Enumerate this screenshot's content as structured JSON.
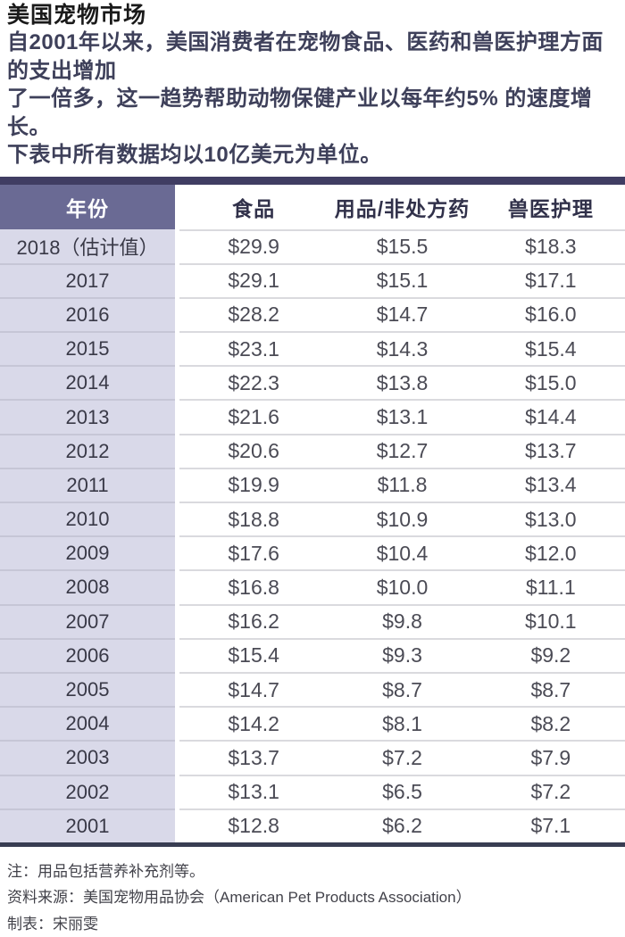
{
  "page": {
    "title": "美国宠物市场",
    "intro_lines": [
      "自2001年以来，美国消费者在宠物食品、医药和兽医护理方面的支出增加",
      "了一倍多，这一趋势帮助动物保健产业以每年约5% 的速度增长。",
      "下表中所有数据均以10亿美元为单位。"
    ]
  },
  "table": {
    "header": {
      "year": "年份",
      "columns": [
        "食品",
        "用品/非处方药",
        "兽医护理"
      ]
    },
    "rows": [
      {
        "year": "2018（估计值）",
        "values": [
          "$29.9",
          "$15.5",
          "$18.3"
        ]
      },
      {
        "year": "2017",
        "values": [
          "$29.1",
          "$15.1",
          "$17.1"
        ]
      },
      {
        "year": "2016",
        "values": [
          "$28.2",
          "$14.7",
          "$16.0"
        ]
      },
      {
        "year": "2015",
        "values": [
          "$23.1",
          "$14.3",
          "$15.4"
        ]
      },
      {
        "year": "2014",
        "values": [
          "$22.3",
          "$13.8",
          "$15.0"
        ]
      },
      {
        "year": "2013",
        "values": [
          "$21.6",
          "$13.1",
          "$14.4"
        ]
      },
      {
        "year": "2012",
        "values": [
          "$20.6",
          "$12.7",
          "$13.7"
        ]
      },
      {
        "year": "2011",
        "values": [
          "$19.9",
          "$11.8",
          "$13.4"
        ]
      },
      {
        "year": "2010",
        "values": [
          "$18.8",
          "$10.9",
          "$13.0"
        ]
      },
      {
        "year": "2009",
        "values": [
          "$17.6",
          "$10.4",
          "$12.0"
        ]
      },
      {
        "year": "2008",
        "values": [
          "$16.8",
          "$10.0",
          "$11.1"
        ]
      },
      {
        "year": "2007",
        "values": [
          "$16.2",
          "$9.8",
          "$10.1"
        ]
      },
      {
        "year": "2006",
        "values": [
          "$15.4",
          "$9.3",
          "$9.2"
        ]
      },
      {
        "year": "2005",
        "values": [
          "$14.7",
          "$8.7",
          "$8.7"
        ]
      },
      {
        "year": "2004",
        "values": [
          "$14.2",
          "$8.1",
          "$8.2"
        ]
      },
      {
        "year": "2003",
        "values": [
          "$13.7",
          "$7.2",
          "$7.9"
        ]
      },
      {
        "year": "2002",
        "values": [
          "$13.1",
          "$6.5",
          "$7.2"
        ]
      },
      {
        "year": "2001",
        "values": [
          "$12.8",
          "$6.2",
          "$7.1"
        ]
      }
    ]
  },
  "footnotes": [
    "注：用品包括营养补充剂等。",
    "资料来源：美国宠物用品协会（American Pet Products Association）",
    "制表：宋丽雯"
  ],
  "colors": {
    "header-purple": "#6a6a94",
    "year-cell-lavender": "#d9d9e9",
    "dark-navy-bar": "#403d63",
    "bottom-bar": "#383d52",
    "intro-color": "#3e405a",
    "col-header-color": "#31314a",
    "value-text-color": "#4b4b55"
  },
  "chart_data": {
    "type": "table",
    "title": "美国宠物市场",
    "subtitle": "自2001年以来，美国消费者在宠物食品、医药和兽医护理方面的支出增加了一倍多，这一趋势帮助动物保健产业以每年约5% 的速度增长。下表中所有数据均以10亿美元为单位。",
    "unit": "10亿美元",
    "columns": [
      "年份",
      "食品",
      "用品/非处方药",
      "兽医护理"
    ],
    "categories": [
      "2018（估计值）",
      "2017",
      "2016",
      "2015",
      "2014",
      "2013",
      "2012",
      "2011",
      "2010",
      "2009",
      "2008",
      "2007",
      "2006",
      "2005",
      "2004",
      "2003",
      "2002",
      "2001"
    ],
    "series": [
      {
        "name": "食品",
        "values": [
          29.9,
          29.1,
          28.2,
          23.1,
          22.3,
          21.6,
          20.6,
          19.9,
          18.8,
          17.6,
          16.8,
          16.2,
          15.4,
          14.7,
          14.2,
          13.7,
          13.1,
          12.8
        ]
      },
      {
        "name": "用品/非处方药",
        "values": [
          15.5,
          15.1,
          14.7,
          14.3,
          13.8,
          13.1,
          12.7,
          11.8,
          10.9,
          10.4,
          10.0,
          9.8,
          9.3,
          8.7,
          8.1,
          7.2,
          6.5,
          6.2
        ]
      },
      {
        "name": "兽医护理",
        "values": [
          18.3,
          17.1,
          16.0,
          15.4,
          15.0,
          14.4,
          13.7,
          13.4,
          13.0,
          12.0,
          11.1,
          10.1,
          9.2,
          8.7,
          8.2,
          7.9,
          7.2,
          7.1
        ]
      }
    ],
    "source": "美国宠物用品协会（American Pet Products Association）",
    "note": "用品包括营养补充剂等。",
    "credit": "制表：宋丽雯"
  }
}
